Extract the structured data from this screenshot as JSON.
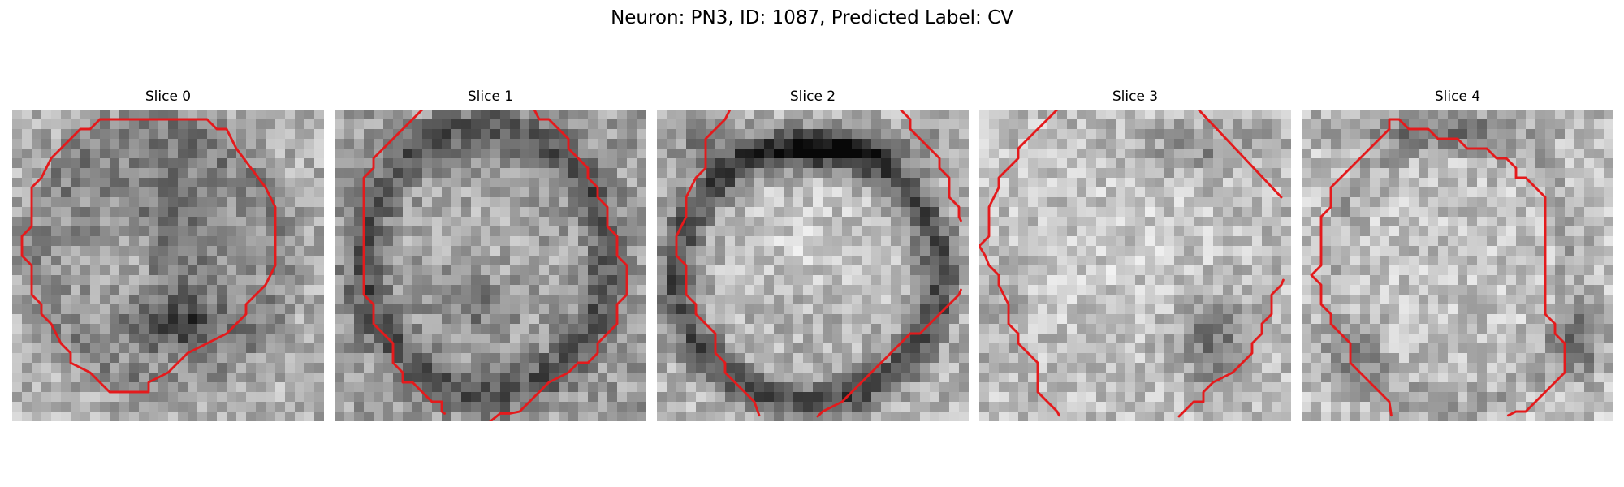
{
  "title": "Neuron: PN3, ID: 1087, Predicted Label: CV",
  "colors": {
    "contour": "#e41a1c",
    "colormap": "gray"
  },
  "panels": [
    {
      "title": "Slice 0"
    },
    {
      "title": "Slice 1"
    },
    {
      "title": "Slice 2"
    },
    {
      "title": "Slice 3"
    },
    {
      "title": "Slice 4"
    }
  ]
}
